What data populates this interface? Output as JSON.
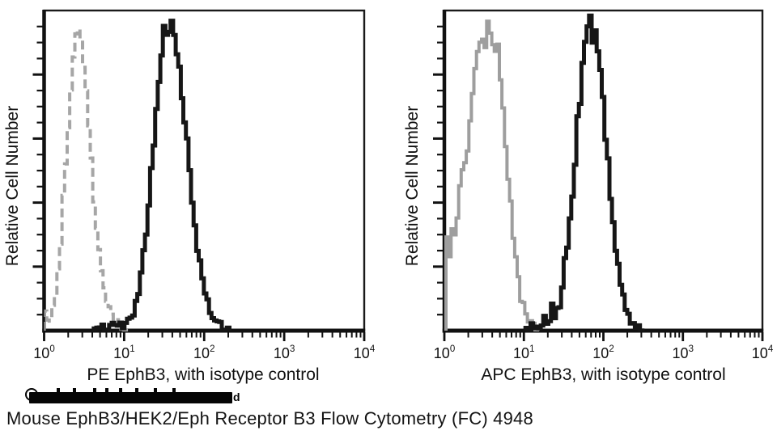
{
  "figure": {
    "caption": "Mouse EphB3/HEK2/Eph Receptor B3 Flow Cytometry (FC) 4948",
    "watermark_redacted": {
      "visible_trailing_text": "d"
    }
  },
  "chart_data": [
    {
      "type": "histogram",
      "title": "",
      "xlabel": "PE EphB3,  with isotype control",
      "ylabel": "Relative Cell Number",
      "x_scale": "log10",
      "x_range": [
        1,
        10000
      ],
      "x_tick_exponents": [
        0,
        1,
        2,
        3,
        4
      ],
      "grid": false,
      "legend": "none",
      "series": [
        {
          "name": "isotype control",
          "color": "#a6a6a6",
          "line_style": "dashed",
          "peak_x_approx": 2.6,
          "peak_rel_height": 0.95,
          "points_log10x_relheight": [
            [
              0.0,
              0.05
            ],
            [
              0.06,
              0.02
            ],
            [
              0.1,
              0.07
            ],
            [
              0.14,
              0.13
            ],
            [
              0.18,
              0.24
            ],
            [
              0.22,
              0.38
            ],
            [
              0.26,
              0.54
            ],
            [
              0.3,
              0.71
            ],
            [
              0.34,
              0.84
            ],
            [
              0.38,
              0.91
            ],
            [
              0.42,
              0.95
            ],
            [
              0.46,
              0.89
            ],
            [
              0.5,
              0.78
            ],
            [
              0.54,
              0.64
            ],
            [
              0.58,
              0.5
            ],
            [
              0.63,
              0.36
            ],
            [
              0.68,
              0.24
            ],
            [
              0.74,
              0.14
            ],
            [
              0.8,
              0.07
            ],
            [
              0.88,
              0.03
            ],
            [
              0.97,
              0.01
            ],
            [
              1.05,
              0.0
            ]
          ]
        },
        {
          "name": "PE EphB3",
          "color": "#161616",
          "line_style": "solid",
          "peak_x_approx": 33,
          "peak_rel_height": 0.97,
          "points_log10x_relheight": [
            [
              0.62,
              0.0
            ],
            [
              0.72,
              0.015
            ],
            [
              0.8,
              0.01
            ],
            [
              0.88,
              0.025
            ],
            [
              0.96,
              0.015
            ],
            [
              1.04,
              0.03
            ],
            [
              1.1,
              0.06
            ],
            [
              1.16,
              0.12
            ],
            [
              1.22,
              0.22
            ],
            [
              1.28,
              0.38
            ],
            [
              1.34,
              0.56
            ],
            [
              1.4,
              0.74
            ],
            [
              1.45,
              0.86
            ],
            [
              1.49,
              0.96
            ],
            [
              1.53,
              0.9
            ],
            [
              1.57,
              0.97
            ],
            [
              1.62,
              0.9
            ],
            [
              1.67,
              0.82
            ],
            [
              1.72,
              0.7
            ],
            [
              1.78,
              0.55
            ],
            [
              1.84,
              0.4
            ],
            [
              1.9,
              0.27
            ],
            [
              1.97,
              0.15
            ],
            [
              2.05,
              0.07
            ],
            [
              2.13,
              0.03
            ],
            [
              2.22,
              0.01
            ],
            [
              2.32,
              0.0
            ]
          ]
        }
      ]
    },
    {
      "type": "histogram",
      "title": "",
      "xlabel": "APC EphB3, with isotype control",
      "ylabel": "Relative Cell Number",
      "x_scale": "log10",
      "x_range": [
        1,
        10000
      ],
      "x_tick_exponents": [
        0,
        1,
        2,
        3,
        4
      ],
      "grid": false,
      "legend": "none",
      "series": [
        {
          "name": "isotype control",
          "color": "#9e9e9e",
          "line_style": "solid",
          "peak_x_approx": 3.5,
          "peak_rel_height": 0.97,
          "points_log10x_relheight": [
            [
              0.02,
              0.28
            ],
            [
              0.05,
              0.22
            ],
            [
              0.08,
              0.31
            ],
            [
              0.11,
              0.26
            ],
            [
              0.15,
              0.36
            ],
            [
              0.19,
              0.5
            ],
            [
              0.23,
              0.55
            ],
            [
              0.27,
              0.52
            ],
            [
              0.31,
              0.64
            ],
            [
              0.36,
              0.77
            ],
            [
              0.41,
              0.88
            ],
            [
              0.46,
              0.93
            ],
            [
              0.5,
              0.89
            ],
            [
              0.54,
              0.97
            ],
            [
              0.58,
              0.91
            ],
            [
              0.62,
              0.86
            ],
            [
              0.66,
              0.88
            ],
            [
              0.7,
              0.77
            ],
            [
              0.75,
              0.62
            ],
            [
              0.8,
              0.46
            ],
            [
              0.85,
              0.31
            ],
            [
              0.9,
              0.18
            ],
            [
              0.96,
              0.09
            ],
            [
              1.03,
              0.04
            ],
            [
              1.1,
              0.015
            ],
            [
              1.18,
              0.0
            ]
          ]
        },
        {
          "name": "APC EphB3",
          "color": "#161616",
          "line_style": "solid",
          "peak_x_approx": 63,
          "peak_rel_height": 0.98,
          "points_log10x_relheight": [
            [
              1.02,
              0.0
            ],
            [
              1.1,
              0.02
            ],
            [
              1.17,
              0.01
            ],
            [
              1.24,
              0.04
            ],
            [
              1.3,
              0.02
            ],
            [
              1.34,
              0.1
            ],
            [
              1.38,
              0.04
            ],
            [
              1.43,
              0.08
            ],
            [
              1.48,
              0.16
            ],
            [
              1.53,
              0.27
            ],
            [
              1.58,
              0.4
            ],
            [
              1.63,
              0.55
            ],
            [
              1.68,
              0.7
            ],
            [
              1.73,
              0.84
            ],
            [
              1.78,
              0.94
            ],
            [
              1.82,
              0.98
            ],
            [
              1.85,
              0.91
            ],
            [
              1.88,
              0.96
            ],
            [
              1.92,
              0.88
            ],
            [
              1.97,
              0.76
            ],
            [
              2.02,
              0.6
            ],
            [
              2.07,
              0.44
            ],
            [
              2.13,
              0.28
            ],
            [
              2.19,
              0.15
            ],
            [
              2.26,
              0.07
            ],
            [
              2.34,
              0.025
            ],
            [
              2.44,
              0.005
            ],
            [
              2.52,
              0.0
            ]
          ]
        }
      ]
    }
  ]
}
